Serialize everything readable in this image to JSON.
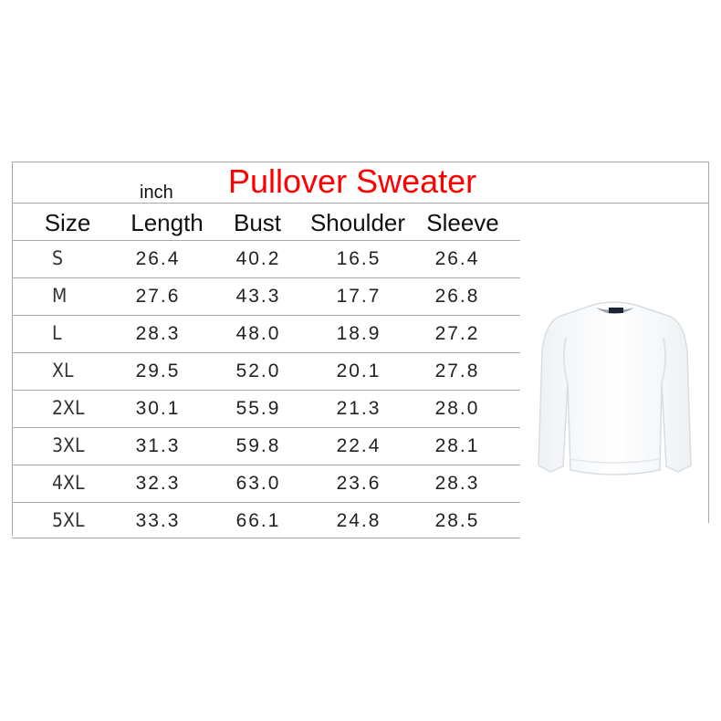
{
  "title": "Pullover Sweater",
  "unit": "inch",
  "colors": {
    "title": "#ff0000",
    "border": "#a8a8a8"
  },
  "headers": [
    "Size",
    "Length",
    "Bust",
    "Shoulder",
    "Sleeve"
  ],
  "rows": [
    {
      "size": "S",
      "length": "26.4",
      "bust": "40.2",
      "shoulder": "16.5",
      "sleeve": "26.4"
    },
    {
      "size": "M",
      "length": "27.6",
      "bust": "43.3",
      "shoulder": "17.7",
      "sleeve": "26.8"
    },
    {
      "size": "L",
      "length": "28.3",
      "bust": "48.0",
      "shoulder": "18.9",
      "sleeve": "27.2"
    },
    {
      "size": "XL",
      "length": "29.5",
      "bust": "52.0",
      "shoulder": "20.1",
      "sleeve": "27.8"
    },
    {
      "size": "2XL",
      "length": "30.1",
      "bust": "55.9",
      "shoulder": "21.3",
      "sleeve": "28.0"
    },
    {
      "size": "3XL",
      "length": "31.3",
      "bust": "59.8",
      "shoulder": "22.4",
      "sleeve": "28.1"
    },
    {
      "size": "4XL",
      "length": "32.3",
      "bust": "63.0",
      "shoulder": "23.6",
      "sleeve": "28.3"
    },
    {
      "size": "5XL",
      "length": "33.3",
      "bust": "66.1",
      "shoulder": "24.8",
      "sleeve": "28.5"
    }
  ],
  "image": {
    "icon": "white-pullover-sweater"
  }
}
